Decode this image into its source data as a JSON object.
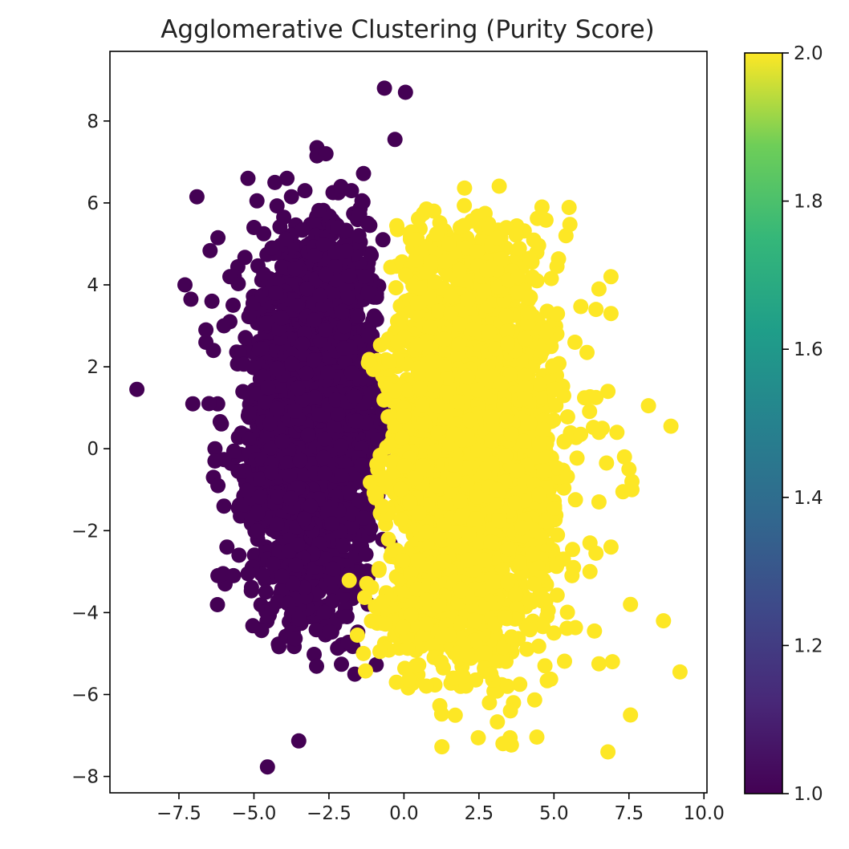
{
  "chart_data": {
    "type": "scatter",
    "title": "Agglomerative Clustering (Purity Score)",
    "xlabel": "",
    "ylabel": "",
    "xlim": [
      -9.8,
      10.1
    ],
    "ylim": [
      -8.4,
      9.7
    ],
    "xticks": [
      -7.5,
      -5.0,
      -2.5,
      0.0,
      2.5,
      5.0,
      7.5,
      10.0
    ],
    "xtick_labels": [
      "−7.5",
      "−5.0",
      "−2.5",
      "0.0",
      "2.5",
      "5.0",
      "7.5",
      "10.0"
    ],
    "yticks": [
      -8,
      -6,
      -4,
      -2,
      0,
      2,
      4,
      6,
      8
    ],
    "ytick_labels": [
      "−8",
      "−6",
      "−4",
      "−2",
      "0",
      "2",
      "4",
      "6",
      "8"
    ],
    "grid": false,
    "colormap": "viridis",
    "colorbar": {
      "range": [
        1.0,
        2.0
      ],
      "ticks": [
        1.0,
        1.2,
        1.4,
        1.6,
        1.8,
        2.0
      ],
      "tick_labels": [
        "1.0",
        "1.2",
        "1.4",
        "1.6",
        "1.8",
        "2.0"
      ]
    },
    "series": [
      {
        "label_value": 1,
        "color": "#440154",
        "clusters": [
          {
            "cx": -3.0,
            "cy": 0.2,
            "sx": 1.0,
            "sy": 1.9,
            "n": 2600,
            "xmax": -0.6
          },
          {
            "cx": -2.6,
            "cy": 4.2,
            "sx": 1.4,
            "sy": 0.8,
            "n": 260,
            "xmax": -0.8
          }
        ],
        "points": [
          [
            -8.9,
            1.45
          ],
          [
            -7.3,
            4.0
          ],
          [
            -7.1,
            3.65
          ],
          [
            -6.9,
            6.15
          ],
          [
            -6.6,
            2.9
          ],
          [
            -6.6,
            2.6
          ],
          [
            -6.2,
            5.15
          ],
          [
            -6.4,
            3.6
          ],
          [
            -6.35,
            2.4
          ],
          [
            -6.3,
            0.0
          ],
          [
            -6.3,
            -0.3
          ],
          [
            -6.35,
            -0.7
          ],
          [
            -6.2,
            -0.9
          ],
          [
            -6.5,
            1.1
          ],
          [
            -6.2,
            -3.1
          ],
          [
            -5.9,
            -2.4
          ],
          [
            -6.0,
            -1.4
          ],
          [
            -5.8,
            3.1
          ],
          [
            -5.2,
            -3.05
          ],
          [
            -5.2,
            6.6
          ],
          [
            -4.9,
            6.05
          ],
          [
            -4.3,
            6.5
          ],
          [
            -3.9,
            6.6
          ],
          [
            -3.75,
            6.15
          ],
          [
            -3.3,
            6.3
          ],
          [
            -2.9,
            7.35
          ],
          [
            -2.9,
            7.15
          ],
          [
            -2.6,
            7.2
          ],
          [
            -2.1,
            6.4
          ],
          [
            -1.75,
            6.3
          ],
          [
            -1.4,
            6.05
          ],
          [
            -4.4,
            -3.9
          ],
          [
            -3.75,
            -4.05
          ],
          [
            -3.5,
            -4.15
          ],
          [
            -2.65,
            -4.0
          ],
          [
            -1.9,
            -4.1
          ],
          [
            -5.0,
            5.4
          ],
          [
            -4.4,
            4.9
          ],
          [
            -5.8,
            4.2
          ],
          [
            -6.0,
            3.0
          ],
          [
            -1.2,
            5.5
          ],
          [
            -0.7,
            5.1
          ],
          [
            -1.5,
            5.2
          ],
          [
            -2.2,
            5.4
          ],
          [
            -5.5,
            -2.6
          ],
          [
            -4.6,
            -3.5
          ],
          [
            -0.65,
            8.8
          ],
          [
            0.05,
            8.7
          ],
          [
            -0.3,
            7.55
          ]
        ]
      },
      {
        "label_value": 2,
        "color": "#fde725",
        "clusters": [
          {
            "cx": 2.2,
            "cy": -0.2,
            "sx": 1.35,
            "sy": 2.0,
            "n": 3000,
            "xmin": -0.9
          },
          {
            "cx": 2.0,
            "cy": 4.4,
            "sx": 1.5,
            "sy": 0.7,
            "n": 220,
            "xmin": -0.2
          },
          {
            "cx": 1.3,
            "cy": -4.3,
            "sx": 1.3,
            "sy": 0.6,
            "n": 200,
            "xmin": -1.7
          }
        ],
        "points": [
          [
            0.75,
            5.85
          ],
          [
            2.0,
            5.45
          ],
          [
            4.6,
            5.9
          ],
          [
            5.4,
            5.2
          ],
          [
            5.1,
            4.45
          ],
          [
            6.5,
            3.9
          ],
          [
            6.9,
            4.2
          ],
          [
            6.9,
            3.3
          ],
          [
            6.4,
            3.4
          ],
          [
            6.1,
            2.35
          ],
          [
            5.7,
            2.6
          ],
          [
            6.8,
            1.4
          ],
          [
            6.4,
            1.25
          ],
          [
            7.1,
            0.4
          ],
          [
            6.5,
            0.4
          ],
          [
            8.15,
            1.05
          ],
          [
            8.9,
            0.55
          ],
          [
            6.75,
            -0.35
          ],
          [
            7.5,
            -0.5
          ],
          [
            7.6,
            -0.8
          ],
          [
            7.35,
            -0.2
          ],
          [
            7.6,
            -1.0
          ],
          [
            7.3,
            -1.05
          ],
          [
            6.5,
            -1.3
          ],
          [
            6.9,
            -2.4
          ],
          [
            6.2,
            -2.3
          ],
          [
            6.4,
            -2.55
          ],
          [
            5.6,
            -3.1
          ],
          [
            6.2,
            -3.0
          ],
          [
            7.55,
            -3.8
          ],
          [
            8.65,
            -4.2
          ],
          [
            9.2,
            -5.45
          ],
          [
            6.35,
            -4.45
          ],
          [
            6.5,
            -5.25
          ],
          [
            6.95,
            -5.2
          ],
          [
            7.55,
            -6.5
          ],
          [
            6.8,
            -7.4
          ],
          [
            3.3,
            -7.2
          ],
          [
            2.85,
            -6.2
          ],
          [
            3.65,
            -6.2
          ],
          [
            3.55,
            -6.4
          ],
          [
            3.45,
            -5.8
          ],
          [
            2.9,
            -5.5
          ],
          [
            1.65,
            -5.6
          ],
          [
            -0.25,
            -5.7
          ],
          [
            -1.55,
            -4.55
          ],
          [
            -1.35,
            -5.0
          ],
          [
            -0.8,
            -4.95
          ],
          [
            5.0,
            -4.5
          ],
          [
            4.7,
            -5.3
          ],
          [
            3.1,
            5.15
          ],
          [
            1.5,
            5.0
          ],
          [
            0.4,
            5.1
          ],
          [
            4.2,
            4.65
          ],
          [
            3.8,
            4.2
          ]
        ]
      }
    ]
  }
}
